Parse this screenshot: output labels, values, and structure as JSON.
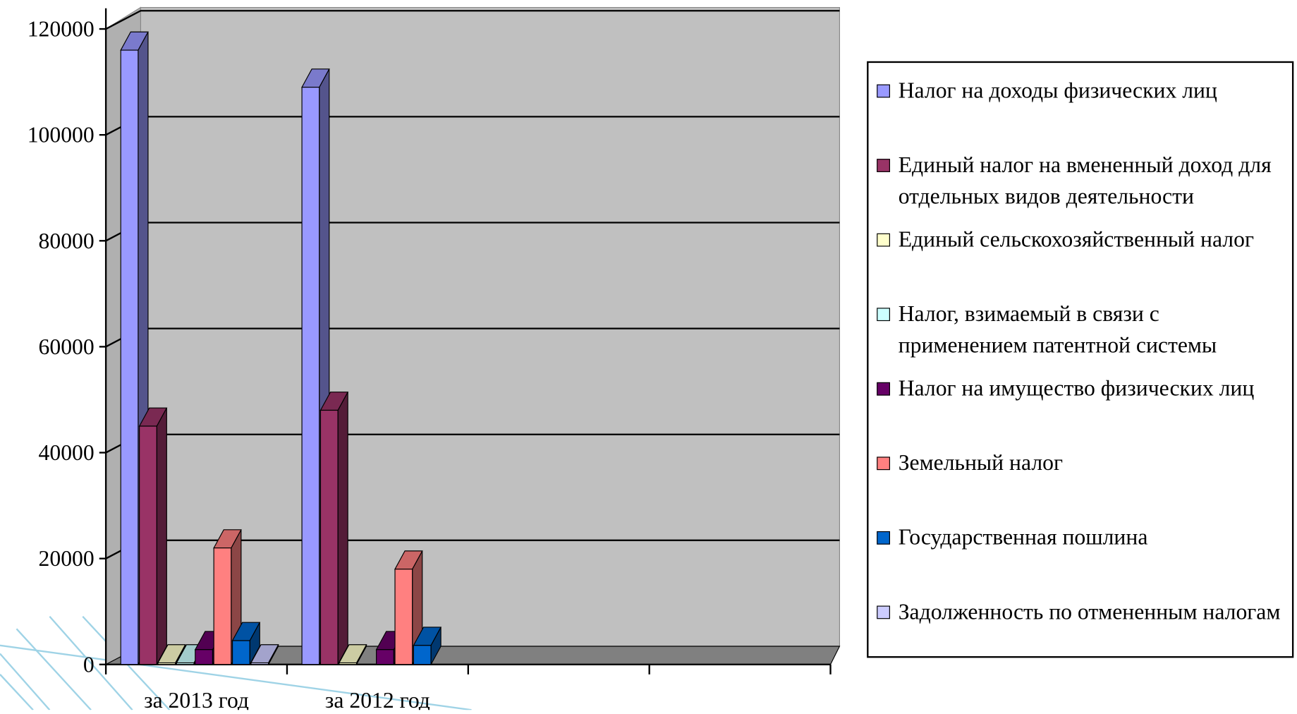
{
  "chart_data": {
    "type": "bar3d",
    "categories": [
      "за 2013 год",
      "за 2012 год",
      null,
      null
    ],
    "series": [
      {
        "name": "Налог на доходы физических лиц",
        "color": "#9999ff",
        "values": [
          116000,
          109000,
          null,
          null
        ]
      },
      {
        "name": "Единый налог на вмененный доход для отдельных видов деятельности",
        "color": "#993366",
        "values": [
          45000,
          48000,
          null,
          null
        ]
      },
      {
        "name": "Единый сельскохозяйственный налог",
        "color": "#ffffcc",
        "values": [
          300,
          300,
          null,
          null
        ]
      },
      {
        "name": "Налог, взимаемый в связи с применением патентной системы",
        "color": "#ccffff",
        "values": [
          300,
          null,
          null,
          null
        ]
      },
      {
        "name": "Налог на имущество физических лиц",
        "color": "#660066",
        "values": [
          2800,
          2800,
          null,
          null
        ]
      },
      {
        "name": "Земельный налог",
        "color": "#ff8080",
        "values": [
          22000,
          18000,
          null,
          null
        ]
      },
      {
        "name": "Государственная пошлина",
        "color": "#0066cc",
        "values": [
          4500,
          3600,
          null,
          null
        ]
      },
      {
        "name": "Задолженность по отмененным налогам",
        "color": "#ccccff",
        "values": [
          300,
          null,
          null,
          null
        ]
      }
    ],
    "ylim": [
      0,
      120000
    ],
    "yticks": [
      0,
      20000,
      40000,
      60000,
      80000,
      100000,
      120000
    ],
    "grid": true,
    "legend": "right"
  }
}
